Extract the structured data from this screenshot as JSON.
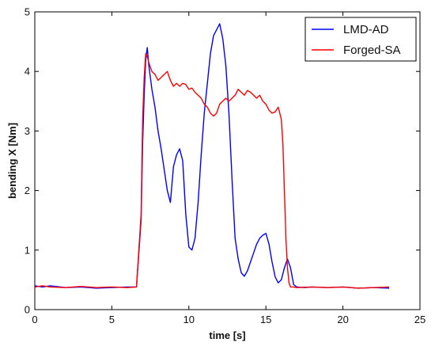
{
  "chart_data": {
    "type": "line",
    "title": "",
    "xlabel": "time [s]",
    "ylabel": "bending X [Nm]",
    "xlim": [
      0,
      25
    ],
    "ylim": [
      0,
      5
    ],
    "xticks": [
      0,
      5,
      10,
      15,
      20,
      25
    ],
    "yticks": [
      0,
      1,
      2,
      3,
      4,
      5
    ],
    "xtick_labels": [
      "0",
      "5",
      "10",
      "15",
      "20",
      "25"
    ],
    "ytick_labels": [
      "0",
      "1",
      "2",
      "3",
      "4",
      "5"
    ],
    "grid": false,
    "legend_position": "top-right",
    "series": [
      {
        "name": "LMD-AD",
        "color": "#0000ff",
        "x": [
          0.0,
          0.5,
          1.0,
          2.0,
          3.0,
          4.0,
          5.0,
          6.0,
          6.6,
          6.9,
          7.0,
          7.1,
          7.2,
          7.3,
          7.4,
          7.5,
          7.6,
          7.8,
          8.0,
          8.2,
          8.4,
          8.6,
          8.8,
          9.0,
          9.2,
          9.4,
          9.6,
          9.8,
          10.0,
          10.2,
          10.4,
          10.6,
          10.8,
          11.0,
          11.2,
          11.4,
          11.6,
          11.8,
          12.0,
          12.2,
          12.4,
          12.6,
          12.8,
          13.0,
          13.2,
          13.4,
          13.6,
          13.8,
          14.0,
          14.2,
          14.4,
          14.6,
          14.8,
          15.0,
          15.2,
          15.4,
          15.6,
          15.8,
          16.0,
          16.2,
          16.4,
          16.6,
          16.8,
          17.0,
          17.5,
          18.0,
          19.0,
          20.0,
          21.0,
          22.0,
          23.0
        ],
        "values": [
          0.4,
          0.38,
          0.4,
          0.37,
          0.38,
          0.36,
          0.37,
          0.38,
          0.38,
          1.5,
          2.8,
          3.6,
          4.2,
          4.4,
          4.1,
          3.9,
          3.7,
          3.4,
          3.0,
          2.7,
          2.35,
          2.0,
          1.8,
          2.4,
          2.6,
          2.7,
          2.5,
          1.6,
          1.05,
          1.0,
          1.2,
          1.8,
          2.6,
          3.3,
          3.8,
          4.3,
          4.6,
          4.7,
          4.8,
          4.55,
          4.1,
          3.3,
          2.2,
          1.2,
          0.85,
          0.62,
          0.56,
          0.65,
          0.8,
          0.95,
          1.1,
          1.2,
          1.25,
          1.28,
          1.1,
          0.8,
          0.55,
          0.45,
          0.5,
          0.7,
          0.85,
          0.7,
          0.42,
          0.38,
          0.37,
          0.38,
          0.37,
          0.38,
          0.36,
          0.37,
          0.36
        ]
      },
      {
        "name": "Forged-SA",
        "color": "#ff0000",
        "x": [
          0.0,
          0.5,
          1.0,
          2.0,
          3.0,
          4.0,
          5.0,
          6.0,
          6.6,
          6.9,
          7.0,
          7.1,
          7.2,
          7.3,
          7.4,
          7.6,
          7.8,
          8.0,
          8.2,
          8.4,
          8.6,
          8.8,
          9.0,
          9.2,
          9.4,
          9.6,
          9.8,
          10.0,
          10.2,
          10.4,
          10.6,
          10.8,
          11.0,
          11.2,
          11.4,
          11.6,
          11.8,
          12.0,
          12.2,
          12.4,
          12.6,
          12.8,
          13.0,
          13.2,
          13.4,
          13.6,
          13.8,
          14.0,
          14.2,
          14.4,
          14.6,
          14.8,
          15.0,
          15.2,
          15.4,
          15.6,
          15.8,
          16.0,
          16.1,
          16.2,
          16.3,
          16.4,
          16.5,
          16.6,
          16.8,
          17.0,
          18.0,
          19.0,
          20.0,
          21.0,
          22.0,
          23.0
        ],
        "values": [
          0.38,
          0.4,
          0.38,
          0.37,
          0.39,
          0.37,
          0.38,
          0.37,
          0.38,
          1.6,
          3.2,
          3.9,
          4.3,
          4.25,
          4.15,
          4.0,
          3.95,
          3.85,
          3.9,
          3.95,
          4.0,
          3.85,
          3.75,
          3.8,
          3.75,
          3.8,
          3.78,
          3.7,
          3.72,
          3.65,
          3.6,
          3.55,
          3.45,
          3.4,
          3.3,
          3.25,
          3.3,
          3.45,
          3.5,
          3.55,
          3.5,
          3.55,
          3.6,
          3.7,
          3.65,
          3.6,
          3.68,
          3.65,
          3.6,
          3.55,
          3.6,
          3.5,
          3.45,
          3.35,
          3.3,
          3.32,
          3.4,
          3.2,
          2.8,
          2.0,
          1.2,
          0.7,
          0.45,
          0.38,
          0.38,
          0.37,
          0.38,
          0.37,
          0.38,
          0.36,
          0.37,
          0.38
        ]
      }
    ]
  }
}
